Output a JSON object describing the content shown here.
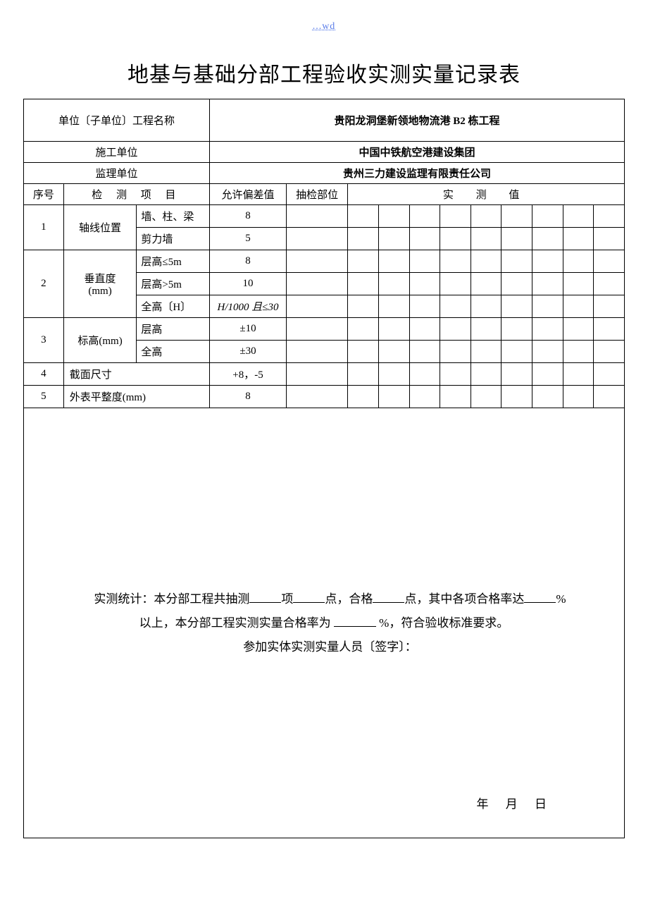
{
  "header_mark": "...wd",
  "title": "地基与基础分部工程验收实测实量记录表",
  "info_rows": [
    {
      "label": "单位〔子单位〕工程名称",
      "value": "贵阳龙洞堡新领地物流港 B2 栋工程"
    },
    {
      "label": "施工单位",
      "value": "中国中铁航空港建设集团"
    },
    {
      "label": "监理单位",
      "value": "贵州三力建设监理有限责任公司"
    }
  ],
  "column_headers": {
    "seq": "序号",
    "item": "检 测 项 目",
    "tolerance": "允许偏差值",
    "location": "抽检部位",
    "measured": "实   测   值"
  },
  "rows": [
    {
      "seq": "1",
      "category": "轴线位置",
      "sub": [
        {
          "name": "墙、柱、梁",
          "tol": "8"
        },
        {
          "name": "剪力墙",
          "tol": "5"
        }
      ]
    },
    {
      "seq": "2",
      "category": "垂直度 (mm)",
      "sub": [
        {
          "name": "层高≤5m",
          "tol": "8"
        },
        {
          "name": "层高>5m",
          "tol": "10"
        },
        {
          "name": "全高〔H〕",
          "tol": "H/1000 且≤30",
          "ital": true
        }
      ]
    },
    {
      "seq": "3",
      "category": "标高(mm)",
      "sub": [
        {
          "name": "层高",
          "tol": "±10"
        },
        {
          "name": "全高",
          "tol": "±30"
        }
      ]
    },
    {
      "seq": "4",
      "category": "截面尺寸",
      "sub": [
        {
          "name": "",
          "tol": "+8，-5"
        }
      ]
    },
    {
      "seq": "5",
      "category": "外表平整度(mm)",
      "sub": [
        {
          "name": "",
          "tol": "8"
        }
      ]
    }
  ],
  "summary": {
    "line1_parts": [
      "实测统计：本分部工程共抽测",
      "项",
      "点，合格",
      "点，其中各项合格率达",
      "%"
    ],
    "line2_parts": [
      "以上，本分部工程实测实量合格率为 ",
      " %，符合验收标准要求。"
    ],
    "line3": "参加实体实测实量人员〔签字〕：",
    "date": "年   月   日"
  },
  "style": {
    "text_color": "#000000",
    "link_color": "#5b7de9",
    "border_color": "#000000",
    "background": "#ffffff",
    "title_fontsize": 30,
    "body_fontsize": 15,
    "summary_fontsize": 17,
    "measured_cols": 9
  }
}
